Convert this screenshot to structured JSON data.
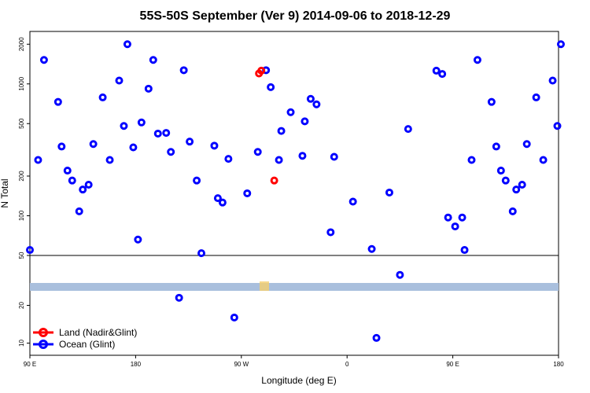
{
  "chart_data": {
    "type": "scatter",
    "title": "55S-50S September (Ver 9)   2014-09-06 to 2018-12-29",
    "xlabel": "Longitude (deg E)",
    "ylabel": "N Total",
    "x_tick_labels": [
      "90 E",
      "180",
      "90 W",
      "0",
      "90 E",
      "180"
    ],
    "x_tick_values": [
      90,
      180,
      270,
      360,
      450,
      540
    ],
    "xlim": [
      90,
      540
    ],
    "y_scale": "log",
    "upper_panel": {
      "ylim": [
        50,
        2500
      ],
      "ticks": [
        50,
        100,
        200,
        500,
        1000,
        2000
      ],
      "tick_labels": [
        "50",
        "100",
        "200",
        "500",
        "1000",
        "2000"
      ]
    },
    "lower_panel": {
      "ylim": [
        8,
        50
      ],
      "ticks": [
        10,
        20
      ],
      "tick_labels": [
        "10",
        "20"
      ]
    },
    "legend_position": "bottom-left",
    "series": [
      {
        "name": "Land (Nadir&Glint)",
        "color": "#ff0000",
        "points": [
          [
            285,
            1200
          ],
          [
            287,
            1260
          ],
          [
            298,
            185
          ]
        ]
      },
      {
        "name": "Ocean (Glint)",
        "color": "#0000ff",
        "points": [
          [
            90,
            55
          ],
          [
            97,
            265
          ],
          [
            102,
            1520
          ],
          [
            114,
            730
          ],
          [
            117,
            335
          ],
          [
            122,
            220
          ],
          [
            126,
            185
          ],
          [
            132,
            108
          ],
          [
            135,
            158
          ],
          [
            140,
            172
          ],
          [
            144,
            350
          ],
          [
            152,
            790
          ],
          [
            158,
            265
          ],
          [
            166,
            1060
          ],
          [
            170,
            480
          ],
          [
            173,
            2000
          ],
          [
            178,
            330
          ],
          [
            182,
            66
          ],
          [
            185,
            510
          ],
          [
            191,
            920
          ],
          [
            195,
            1520
          ],
          [
            199,
            420
          ],
          [
            206,
            425
          ],
          [
            210,
            305
          ],
          [
            217,
            23
          ],
          [
            221,
            1270
          ],
          [
            226,
            365
          ],
          [
            232,
            185
          ],
          [
            236,
            52
          ],
          [
            247,
            340
          ],
          [
            250,
            136
          ],
          [
            254,
            126
          ],
          [
            259,
            270
          ],
          [
            264,
            16
          ],
          [
            275,
            148
          ],
          [
            291,
            1270
          ],
          [
            284,
            305
          ],
          [
            295,
            945
          ],
          [
            302,
            265
          ],
          [
            304,
            440
          ],
          [
            312,
            610
          ],
          [
            322,
            285
          ],
          [
            324,
            520
          ],
          [
            329,
            770
          ],
          [
            334,
            700
          ],
          [
            346,
            75
          ],
          [
            349,
            280
          ],
          [
            365,
            128
          ],
          [
            381,
            56
          ],
          [
            385,
            11
          ],
          [
            396,
            150
          ],
          [
            405,
            35
          ],
          [
            412,
            455
          ],
          [
            436,
            1260
          ],
          [
            441,
            1190
          ],
          [
            446,
            97
          ],
          [
            452,
            83
          ],
          [
            458,
            97
          ],
          [
            460,
            55
          ],
          [
            466,
            265
          ],
          [
            471,
            1520
          ],
          [
            483,
            730
          ],
          [
            487,
            335
          ],
          [
            491,
            220
          ],
          [
            495,
            185
          ],
          [
            501,
            108
          ],
          [
            504,
            158
          ],
          [
            509,
            172
          ],
          [
            513,
            350
          ],
          [
            521,
            790
          ],
          [
            527,
            265
          ],
          [
            535,
            1060
          ],
          [
            539,
            480
          ],
          [
            542,
            2000
          ]
        ]
      }
    ]
  }
}
